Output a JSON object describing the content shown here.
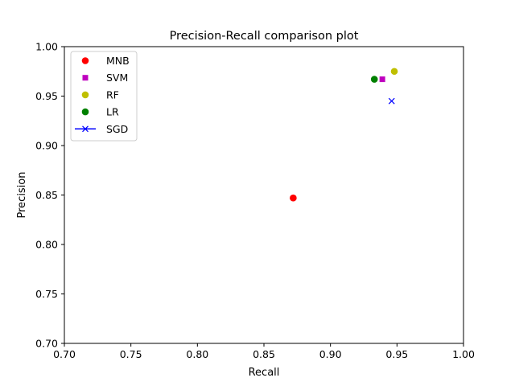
{
  "chart_data": {
    "type": "scatter",
    "title": "Precision-Recall comparison plot",
    "xlabel": "Recall",
    "ylabel": "Precision",
    "xlim": [
      0.7,
      1.0
    ],
    "ylim": [
      0.7,
      1.0
    ],
    "xticks": [
      "0.70",
      "0.75",
      "0.80",
      "0.85",
      "0.90",
      "0.95",
      "1.00"
    ],
    "yticks": [
      "0.70",
      "0.75",
      "0.80",
      "0.85",
      "0.90",
      "0.95",
      "1.00"
    ],
    "grid": false,
    "legend_position": "top-left",
    "series": [
      {
        "name": "MNB",
        "marker": "circle",
        "color": "#ff0000",
        "line": false,
        "points": [
          {
            "x": 0.872,
            "y": 0.847
          }
        ]
      },
      {
        "name": "SVM",
        "marker": "square",
        "color": "#bf00bf",
        "line": false,
        "points": [
          {
            "x": 0.939,
            "y": 0.967
          }
        ]
      },
      {
        "name": "RF",
        "marker": "circle",
        "color": "#bfbf00",
        "line": false,
        "points": [
          {
            "x": 0.948,
            "y": 0.975
          }
        ]
      },
      {
        "name": "LR",
        "marker": "circle",
        "color": "#008000",
        "line": false,
        "points": [
          {
            "x": 0.933,
            "y": 0.967
          }
        ]
      },
      {
        "name": "SGD",
        "marker": "x",
        "color": "#0000ff",
        "line": true,
        "points": [
          {
            "x": 0.946,
            "y": 0.945
          }
        ]
      }
    ]
  }
}
